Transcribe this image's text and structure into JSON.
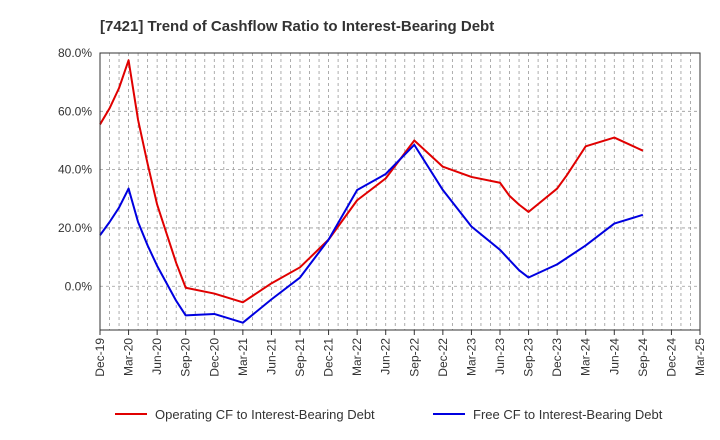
{
  "chart_data": {
    "type": "line",
    "title": "[7421]  Trend of Cashflow Ratio to Interest-Bearing Debt",
    "xlabel": "",
    "ylabel": "",
    "categories": [
      "Dec-19",
      "Mar-20",
      "Jun-20",
      "Sep-20",
      "Dec-20",
      "Mar-21",
      "Jun-21",
      "Sep-21",
      "Dec-21",
      "Mar-22",
      "Jun-22",
      "Sep-22",
      "Dec-22",
      "Mar-23",
      "Jun-23",
      "Sep-23",
      "Dec-23",
      "Mar-24",
      "Jun-24",
      "Sep-24",
      "Dec-24",
      "Mar-25"
    ],
    "ylim": [
      -15,
      80
    ],
    "yticks": [
      "80.0%",
      "60.0%",
      "40.0%",
      "20.0%",
      "0.0%"
    ],
    "ytick_values": [
      80,
      60,
      40,
      20,
      0
    ],
    "grid": true,
    "legend_position": "bottom",
    "series": [
      {
        "name": "Operating CF to Interest-Bearing Debt",
        "color": "#e00000",
        "x": [
          "Dec-19",
          "Jan-20",
          "Feb-20",
          "Mar-20",
          "Apr-20",
          "May-20",
          "Jun-20",
          "Jul-20",
          "Aug-20",
          "Sep-20",
          "Dec-20",
          "Mar-21",
          "Jun-21",
          "Sep-21",
          "Dec-21",
          "Mar-22",
          "Jun-22",
          "Sep-22",
          "Dec-22",
          "Mar-23",
          "Jun-23",
          "Jul-23",
          "Aug-23",
          "Sep-23",
          "Dec-23",
          "Jan-24",
          "Feb-24",
          "Mar-24",
          "Jun-24",
          "Sep-24"
        ],
        "values": [
          55.5,
          61,
          68,
          77.5,
          57,
          42,
          28,
          18,
          8,
          -0.5,
          -2.5,
          -5.5,
          1,
          6.5,
          16,
          29.5,
          37,
          50,
          41,
          37.5,
          35.5,
          31,
          28,
          25.5,
          33.5,
          38,
          43,
          48,
          51,
          46.5
        ]
      },
      {
        "name": "Free CF to Interest-Bearing Debt",
        "color": "#0000e0",
        "x": [
          "Dec-19",
          "Jan-20",
          "Feb-20",
          "Mar-20",
          "Apr-20",
          "May-20",
          "Jun-20",
          "Jul-20",
          "Aug-20",
          "Sep-20",
          "Dec-20",
          "Mar-21",
          "Jun-21",
          "Sep-21",
          "Dec-21",
          "Mar-22",
          "Jun-22",
          "Sep-22",
          "Dec-22",
          "Mar-23",
          "Jun-23",
          "Jul-23",
          "Aug-23",
          "Sep-23",
          "Dec-23",
          "Mar-24",
          "Jun-24",
          "Sep-24"
        ],
        "values": [
          17.5,
          22,
          27,
          33.5,
          22,
          14,
          7,
          1,
          -5,
          -10,
          -9.5,
          -12.5,
          -4.5,
          3,
          16,
          33,
          38.5,
          48.5,
          33,
          20.5,
          12.5,
          9,
          5.5,
          3,
          7.5,
          14,
          21.5,
          24.5
        ]
      }
    ]
  }
}
